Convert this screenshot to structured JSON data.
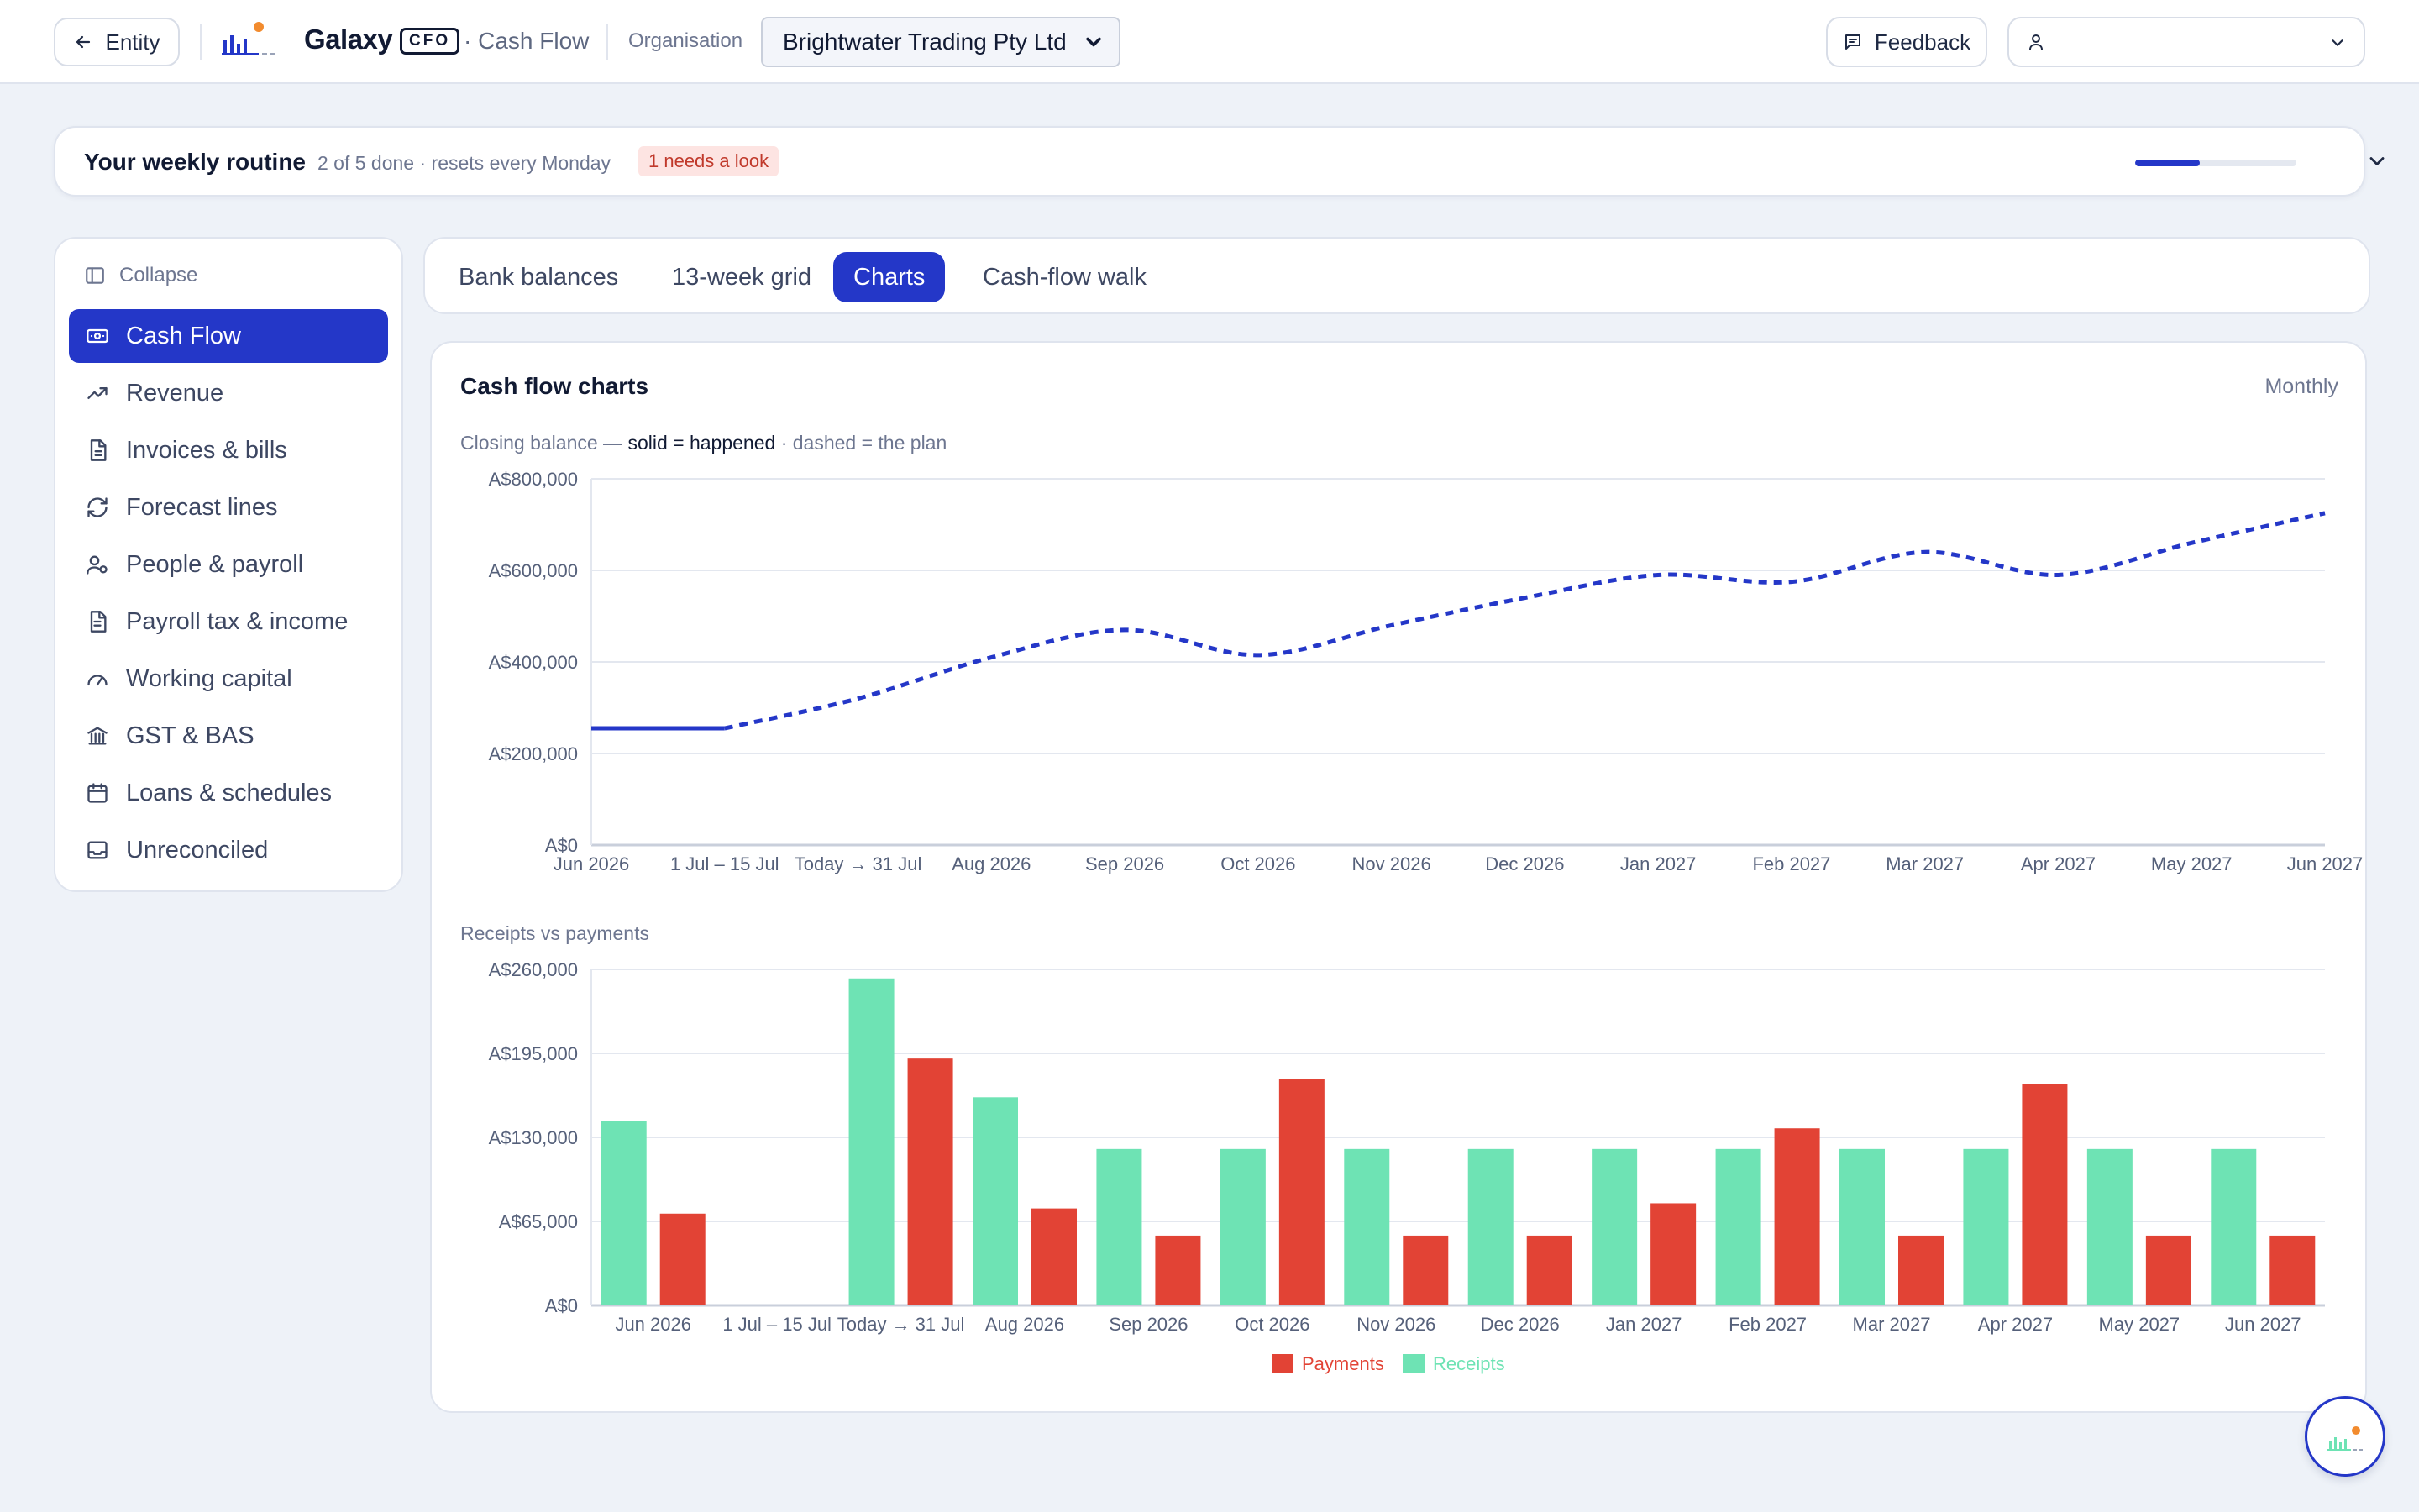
{
  "topbar": {
    "entity_label": "Entity",
    "brand": "Galaxy",
    "brand_badge": "CFO",
    "breadcrumb": "· Cash Flow",
    "org_label": "Organisation",
    "org_value": "Brightwater Trading Pty Ltd",
    "feedback_label": "Feedback"
  },
  "routine": {
    "title": "Your weekly routine",
    "subtitle": "2 of 5 done · resets every Monday",
    "badge": "1 needs a look",
    "progress": 0.4
  },
  "sidebar": {
    "collapse_label": "Collapse",
    "items": [
      {
        "label": "Cash Flow",
        "icon": "banknote-icon",
        "active": true
      },
      {
        "label": "Revenue",
        "icon": "trending-up-icon",
        "active": false
      },
      {
        "label": "Invoices & bills",
        "icon": "invoice-icon",
        "active": false
      },
      {
        "label": "Forecast lines",
        "icon": "refresh-icon",
        "active": false
      },
      {
        "label": "People & payroll",
        "icon": "people-icon",
        "active": false
      },
      {
        "label": "Payroll tax & income",
        "icon": "document-icon",
        "active": false
      },
      {
        "label": "Working capital",
        "icon": "gauge-icon",
        "active": false
      },
      {
        "label": "GST & BAS",
        "icon": "bank-icon",
        "active": false
      },
      {
        "label": "Loans & schedules",
        "icon": "calendar-icon",
        "active": false
      },
      {
        "label": "Unreconciled",
        "icon": "inbox-icon",
        "active": false
      }
    ]
  },
  "tabs": [
    {
      "label": "Bank balances",
      "active": false
    },
    {
      "label": "13-week grid",
      "active": false
    },
    {
      "label": "Charts",
      "active": true
    },
    {
      "label": "Cash-flow walk",
      "active": false
    }
  ],
  "card": {
    "title": "Cash flow charts",
    "period": "Monthly",
    "line_caption_prefix": "Closing balance — ",
    "line_caption_solid": "solid = happened",
    "line_caption_dashed": " · dashed = the plan",
    "bar_caption": "Receipts vs payments"
  },
  "colors": {
    "accent": "#2437c8",
    "receipts": "#6ee3b4",
    "payments": "#e24335"
  },
  "chart_data": [
    {
      "type": "line",
      "title": "Closing balance",
      "categories": [
        "Jun 2026",
        "1 Jul – 15 Jul",
        "Today → 31 Jul",
        "Aug 2026",
        "Sep 2026",
        "Oct 2026",
        "Nov 2026",
        "Dec 2026",
        "Jan 2027",
        "Feb 2027",
        "Mar 2027",
        "Apr 2027",
        "May 2027",
        "Jun 2027"
      ],
      "series": [
        {
          "name": "happened",
          "style": "solid",
          "values": [
            255000,
            255000,
            null,
            null,
            null,
            null,
            null,
            null,
            null,
            null,
            null,
            null,
            null,
            null
          ]
        },
        {
          "name": "the plan",
          "style": "dashed",
          "values": [
            null,
            255000,
            320000,
            410000,
            470000,
            415000,
            480000,
            540000,
            590000,
            575000,
            640000,
            590000,
            660000,
            725000
          ]
        }
      ],
      "yticks": [
        "A$0",
        "A$200,000",
        "A$400,000",
        "A$600,000",
        "A$800,000"
      ],
      "ylim": [
        0,
        800000
      ],
      "grid": true
    },
    {
      "type": "bar",
      "title": "Receipts vs payments",
      "categories": [
        "Jun 2026",
        "1 Jul – 15 Jul",
        "Today → 31 Jul",
        "Aug 2026",
        "Sep 2026",
        "Oct 2026",
        "Nov 2026",
        "Dec 2026",
        "Jan 2027",
        "Feb 2027",
        "Mar 2027",
        "Apr 2027",
        "May 2027",
        "Jun 2027"
      ],
      "series": [
        {
          "name": "Receipts",
          "values": [
            143000,
            0,
            253000,
            161000,
            121000,
            121000,
            121000,
            121000,
            121000,
            121000,
            121000,
            121000,
            121000,
            121000
          ]
        },
        {
          "name": "Payments",
          "values": [
            71000,
            0,
            191000,
            75000,
            54000,
            175000,
            54000,
            54000,
            79000,
            137000,
            54000,
            171000,
            54000,
            54000
          ]
        }
      ],
      "yticks": [
        "A$0",
        "A$65,000",
        "A$130,000",
        "A$195,000",
        "A$260,000"
      ],
      "ylim": [
        0,
        260000
      ],
      "legend": [
        "Payments",
        "Receipts"
      ],
      "legend_position": "bottom",
      "grid": true
    }
  ]
}
